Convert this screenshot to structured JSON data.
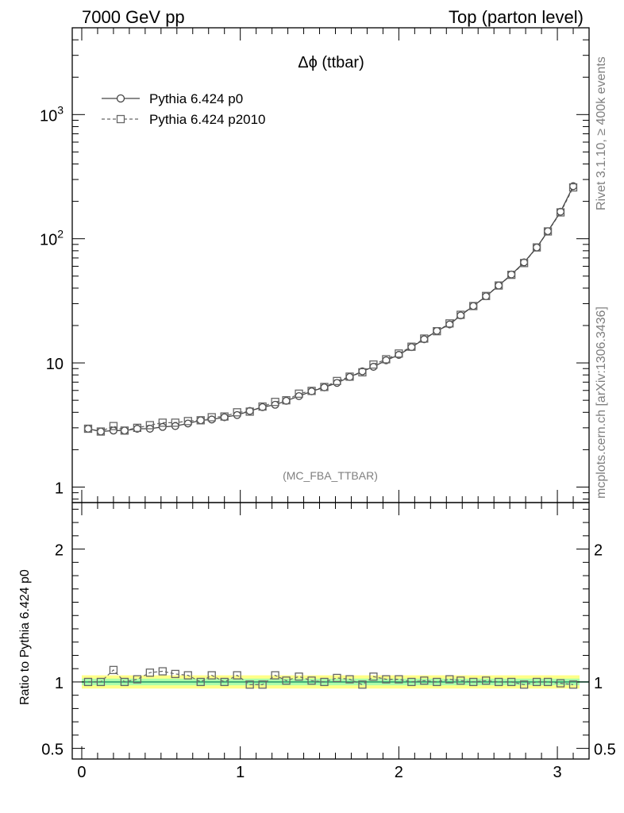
{
  "header": {
    "left": "7000 GeV pp",
    "right": "Top (parton level)"
  },
  "side_labels": {
    "rivet": "Rivet 3.1.10, ≥ 400k events",
    "source": "mcplots.cern.ch [arXiv:1306.3436]"
  },
  "analysis_tag": "(MC_FBA_TTBAR)",
  "colors": {
    "p0_line": "#444444",
    "p2010_marker": "#666666",
    "band_outer": "#ffff88",
    "band_inner": "#aaffaa",
    "ref_line": "#2f9f6f"
  },
  "chart_data": [
    {
      "type": "line",
      "title": "Δϕ (ttbar)",
      "xlabel": "",
      "ylabel": "",
      "yscale": "log",
      "xlim": [
        -0.06,
        3.2
      ],
      "ylim": [
        0.75,
        5000
      ],
      "legend_position": "top-left",
      "ytick_labels": [
        "1",
        "10",
        "10^2",
        "10^3"
      ],
      "xtick_labels": [],
      "x": [
        0.04,
        0.12,
        0.2,
        0.27,
        0.35,
        0.43,
        0.51,
        0.59,
        0.67,
        0.75,
        0.82,
        0.9,
        0.98,
        1.06,
        1.14,
        1.22,
        1.29,
        1.37,
        1.45,
        1.53,
        1.61,
        1.69,
        1.77,
        1.84,
        1.92,
        2.0,
        2.08,
        2.16,
        2.24,
        2.32,
        2.39,
        2.47,
        2.55,
        2.63,
        2.71,
        2.79,
        2.87,
        2.94,
        3.02,
        3.1
      ],
      "series": [
        {
          "name": "Pythia 6.424 p0",
          "marker": "circle",
          "line": "solid",
          "values": [
            2.95,
            2.8,
            2.85,
            2.85,
            2.95,
            2.95,
            3.05,
            3.1,
            3.25,
            3.45,
            3.5,
            3.65,
            3.8,
            4.1,
            4.4,
            4.6,
            4.95,
            5.4,
            5.9,
            6.35,
            6.9,
            7.7,
            8.55,
            9.3,
            10.5,
            11.6,
            13.4,
            15.5,
            18.1,
            20.4,
            24.1,
            28.7,
            34.4,
            42.0,
            51.5,
            64.5,
            85.0,
            115.0,
            165.0,
            265.0
          ]
        },
        {
          "name": "Pythia 6.424 p2010",
          "marker": "square",
          "line": "dashed",
          "values": [
            2.95,
            2.8,
            3.1,
            2.85,
            3.0,
            3.15,
            3.3,
            3.3,
            3.4,
            3.45,
            3.65,
            3.7,
            4.0,
            4.05,
            4.45,
            4.85,
            5.0,
            5.65,
            5.95,
            6.4,
            7.15,
            7.75,
            8.4,
            9.7,
            10.7,
            11.9,
            13.5,
            15.7,
            18.0,
            20.8,
            24.4,
            28.7,
            34.6,
            42.0,
            51.2,
            63.7,
            85.1,
            114.5,
            163.0,
            259.0
          ]
        }
      ]
    },
    {
      "type": "line",
      "ylabel": "Ratio to Pythia 6.424 p0",
      "xlabel": "",
      "xlim": [
        -0.06,
        3.2
      ],
      "ylim": [
        0.42,
        2.35
      ],
      "ytick_labels": [
        "0.5",
        "1",
        "2"
      ],
      "xtick_labels": [
        "0",
        "1",
        "2",
        "3"
      ],
      "series": [
        {
          "name": "Pythia 6.424 p2010",
          "values": [
            1.0,
            1.0,
            1.09,
            1.0,
            1.02,
            1.07,
            1.08,
            1.06,
            1.05,
            1.0,
            1.05,
            1.0,
            1.05,
            0.98,
            0.98,
            1.05,
            1.01,
            1.04,
            1.01,
            1.0,
            1.03,
            1.02,
            0.98,
            1.04,
            1.02,
            1.02,
            1.0,
            1.01,
            1.0,
            1.02,
            1.01,
            1.0,
            1.01,
            1.0,
            1.0,
            0.98,
            1.0,
            1.0,
            0.99,
            0.98
          ]
        }
      ],
      "band_outer_halfwidth": 0.05,
      "band_inner_halfwidth": 0.025
    }
  ]
}
